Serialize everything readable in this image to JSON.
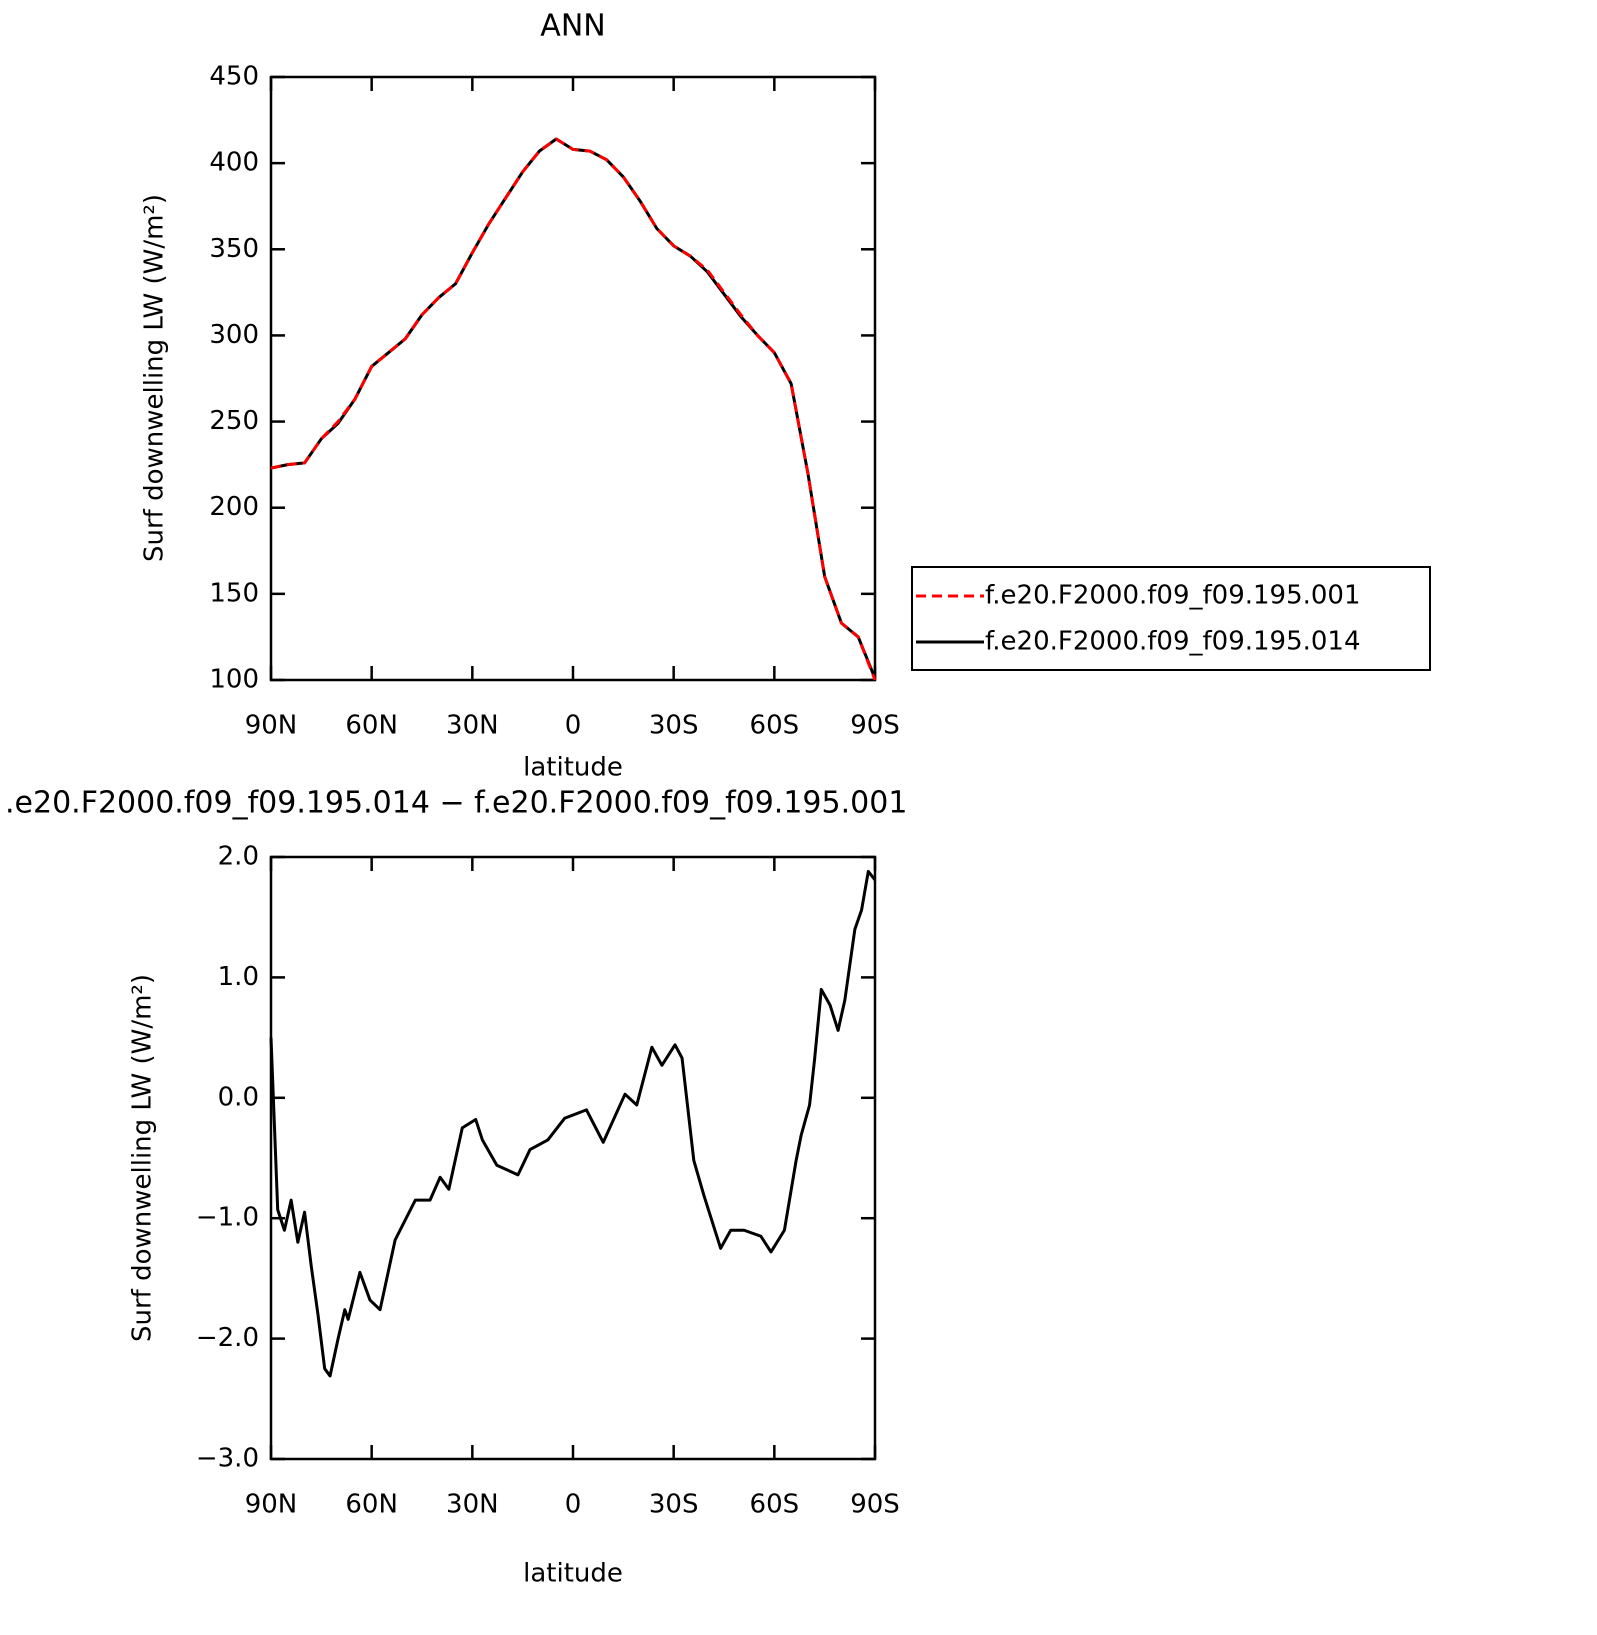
{
  "chart_data": [
    {
      "type": "line",
      "title": "ANN",
      "ylabel": "Surf downwelling LW (W/m²)",
      "xlabel": "latitude",
      "x": [
        90,
        85,
        80,
        75,
        70,
        65,
        60,
        55,
        50,
        45,
        40,
        35,
        30,
        25,
        20,
        15,
        10,
        5,
        0,
        -5,
        -10,
        -15,
        -20,
        -25,
        -30,
        -35,
        -40,
        -45,
        -50,
        -55,
        -60,
        -65,
        -70,
        -75,
        -80,
        -85,
        -90
      ],
      "series": [
        {
          "name": "f.e20.F2000.f09_f09.195.001",
          "color": "#ff0000",
          "line_style": "dashed",
          "values": [
            223,
            225,
            226,
            240,
            250,
            263,
            282,
            290,
            298,
            312,
            322,
            330,
            348,
            365,
            380,
            395,
            407,
            414,
            408,
            407,
            402,
            392,
            378,
            362,
            352,
            346,
            338,
            325,
            312,
            300,
            290,
            272,
            220,
            160,
            133,
            125,
            100
          ]
        },
        {
          "name": "f.e20.F2000.f09_f09.195.014",
          "color": "#000000",
          "line_style": "solid",
          "values": [
            223,
            225,
            226,
            240,
            249,
            263,
            282,
            290,
            298,
            312,
            322,
            330,
            348,
            365,
            380,
            395,
            407,
            414,
            408,
            407,
            402,
            392,
            378,
            362,
            352,
            346,
            337,
            324,
            311,
            300,
            290,
            272,
            220,
            160,
            133,
            125,
            101
          ]
        }
      ],
      "xlim": [
        90,
        -90
      ],
      "xticks": [
        {
          "value": 90,
          "label": "90N"
        },
        {
          "value": 60,
          "label": "60N"
        },
        {
          "value": 30,
          "label": "30N"
        },
        0,
        {
          "value": -30,
          "label": "30S"
        },
        {
          "value": -60,
          "label": "60S"
        },
        {
          "value": -90,
          "label": "90S"
        }
      ],
      "ylim": [
        100,
        450
      ],
      "yticks": [
        100,
        150,
        200,
        250,
        300,
        350,
        400,
        450
      ],
      "legend": "outside-right"
    },
    {
      "type": "line",
      "title": ".e20.F2000.f09_f09.195.014 − f.e20.F2000.f09_f09.195.001",
      "ylabel": "Surf downwelling LW (W/m²)",
      "xlabel": "latitude",
      "x": [
        90,
        88,
        86,
        84,
        82,
        80,
        78,
        76,
        74,
        72.4,
        70,
        68,
        67,
        63.5,
        60.5,
        57.5,
        53,
        47,
        42.6,
        39.6,
        37,
        33,
        29,
        27,
        22.7,
        16.4,
        12.8,
        7.5,
        2.5,
        -4,
        -9,
        -15.5,
        -19,
        -23.5,
        -26.5,
        -30.4,
        -32.5,
        -36,
        -39,
        -44,
        -47,
        -51,
        -56,
        -59,
        -63,
        -66.5,
        -68,
        -70.5,
        -72,
        -74,
        -76.6,
        -79,
        -81,
        -84,
        -86,
        -88,
        -90
      ],
      "series": [
        {
          "name": null,
          "color": "#000000",
          "line_style": "solid",
          "values": [
            0.5,
            -0.93,
            -1.1,
            -0.85,
            -1.2,
            -0.95,
            -1.4,
            -1.8,
            -2.25,
            -2.31,
            -2.0,
            -1.76,
            -1.84,
            -1.45,
            -1.68,
            -1.76,
            -1.18,
            -0.85,
            -0.85,
            -0.66,
            -0.76,
            -0.25,
            -0.18,
            -0.35,
            -0.56,
            -0.64,
            -0.43,
            -0.35,
            -0.17,
            -0.1,
            -0.37,
            0.03,
            -0.06,
            0.42,
            0.27,
            0.44,
            0.33,
            -0.52,
            -0.81,
            -1.25,
            -1.1,
            -1.1,
            -1.15,
            -1.28,
            -1.1,
            -0.52,
            -0.31,
            -0.06,
            0.32,
            0.9,
            0.77,
            0.56,
            0.81,
            1.4,
            1.56,
            1.88,
            1.81
          ]
        }
      ],
      "xlim": [
        90,
        -90
      ],
      "xticks": [
        {
          "value": 90,
          "label": "90N"
        },
        {
          "value": 60,
          "label": "60N"
        },
        {
          "value": 30,
          "label": "30N"
        },
        0,
        {
          "value": -30,
          "label": "30S"
        },
        {
          "value": -60,
          "label": "60S"
        },
        {
          "value": -90,
          "label": "90S"
        }
      ],
      "ylim": [
        -3,
        2
      ],
      "yticks": [
        {
          "value": 2,
          "label": "2.0"
        },
        {
          "value": 1,
          "label": "1.0"
        },
        {
          "value": 0,
          "label": "0.0"
        },
        {
          "value": -1,
          "label": "−1.0"
        },
        {
          "value": -2,
          "label": "−2.0"
        },
        {
          "value": -3,
          "label": "−3.0"
        }
      ]
    }
  ]
}
